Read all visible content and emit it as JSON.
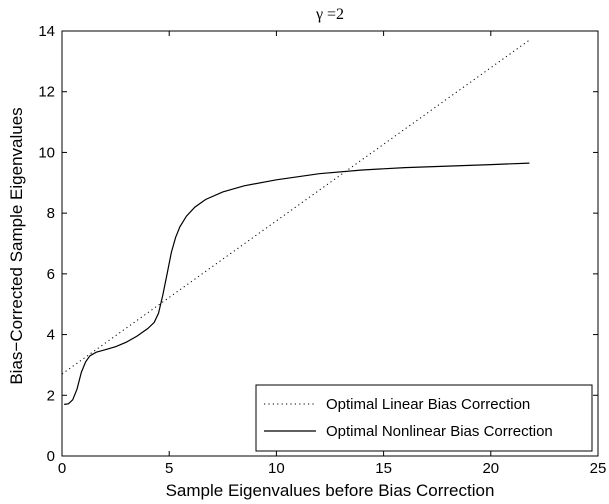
{
  "chart_data": {
    "type": "line",
    "title": "γ =2",
    "xlabel": "Sample Eigenvalues before Bias Correction",
    "ylabel": "Bias−Corrected Sample Eigenvalues",
    "xlim": [
      0,
      25
    ],
    "ylim": [
      0,
      14
    ],
    "xticks": [
      0,
      5,
      10,
      15,
      20,
      25
    ],
    "yticks": [
      0,
      2,
      4,
      6,
      8,
      10,
      12,
      14
    ],
    "grid": false,
    "legend_position": "bottom-right",
    "series": [
      {
        "name": "Optimal Linear Bias Correction",
        "style": "dotted",
        "x": [
          0,
          21.8
        ],
        "y": [
          2.7,
          13.7
        ]
      },
      {
        "name": "Optimal Nonlinear Bias Correction",
        "style": "solid",
        "x": [
          0.1,
          0.3,
          0.5,
          0.7,
          0.9,
          1.1,
          1.3,
          1.6,
          2.0,
          2.5,
          3.0,
          3.5,
          4.0,
          4.3,
          4.5,
          4.7,
          4.9,
          5.1,
          5.3,
          5.5,
          5.8,
          6.2,
          6.7,
          7.5,
          8.5,
          10,
          12,
          14,
          16,
          18,
          20,
          21.8
        ],
        "y": [
          1.7,
          1.72,
          1.85,
          2.2,
          2.75,
          3.1,
          3.3,
          3.42,
          3.5,
          3.6,
          3.75,
          3.95,
          4.2,
          4.4,
          4.7,
          5.3,
          6.0,
          6.7,
          7.2,
          7.55,
          7.9,
          8.2,
          8.45,
          8.7,
          8.9,
          9.1,
          9.3,
          9.42,
          9.5,
          9.55,
          9.6,
          9.65
        ]
      }
    ]
  }
}
